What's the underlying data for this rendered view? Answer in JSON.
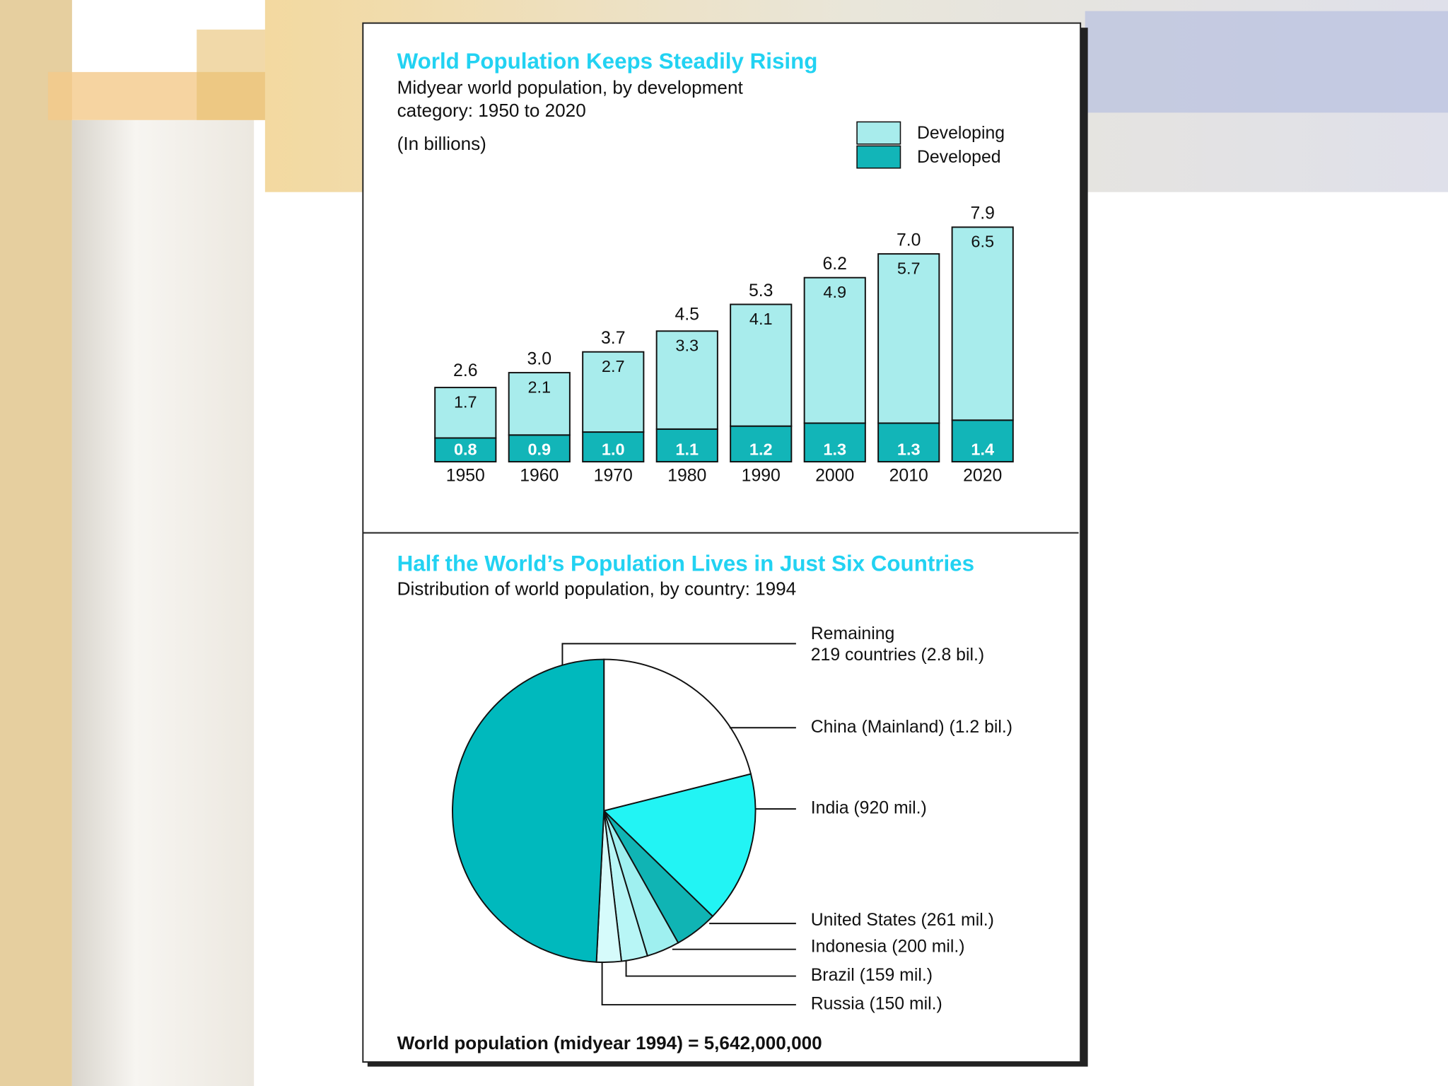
{
  "chart_data": [
    {
      "type": "bar",
      "stacked": true,
      "title": "World Population Keeps Steadily Rising",
      "subtitle": [
        "Midyear world population, by development",
        "category:  1950 to 2020"
      ],
      "unit_note": "(In billions)",
      "categories": [
        "1950",
        "1960",
        "1970",
        "1980",
        "1990",
        "2000",
        "2010",
        "2020"
      ],
      "series": [
        {
          "name": "Developed",
          "color": "#12b5b8",
          "values": [
            0.8,
            0.9,
            1.0,
            1.1,
            1.2,
            1.3,
            1.3,
            1.4
          ],
          "value_labels": [
            "0.8",
            "0.9",
            "1.0",
            "1.1",
            "1.2",
            "1.3",
            "1.3",
            "1.4"
          ]
        },
        {
          "name": "Developing",
          "color": "#a8ecec",
          "values": [
            1.7,
            2.1,
            2.7,
            3.3,
            4.1,
            4.9,
            5.7,
            6.5
          ],
          "value_labels": [
            "1.7",
            "2.1",
            "2.7",
            "3.3",
            "4.1",
            "4.9",
            "5.7",
            "6.5"
          ]
        }
      ],
      "totals": [
        2.6,
        3.0,
        3.7,
        4.5,
        5.3,
        6.2,
        7.0,
        7.9
      ],
      "total_labels": [
        "2.6",
        "3.0",
        "3.7",
        "4.5",
        "5.3",
        "6.2",
        "7.0",
        "7.9"
      ],
      "legend": "top-right"
    },
    {
      "type": "pie",
      "title": "Half the World’s Population Lives in Just Six Countries",
      "subtitle": "Distribution of world population, by country:  1994",
      "categories": [
        [
          "China (Mainland) (1.2 bil.)"
        ],
        [
          "India (920 mil.)"
        ],
        [
          "United States (261 mil.)"
        ],
        [
          "Indonesia (200 mil.)"
        ],
        [
          "Brazil (159 mil.)"
        ],
        [
          "Russia (150 mil.)"
        ],
        [
          "Remaining",
          "219 countries (2.8 bil.)"
        ]
      ],
      "values": [
        1200,
        920,
        261,
        200,
        159,
        150,
        2800
      ],
      "colors": [
        "#ffffff",
        "#22f4f4",
        "#10b4b4",
        "#9ff0f0",
        "#b8f6f6",
        "#d6fbfb",
        "#00b9bd"
      ],
      "note": "World population (midyear 1994) = 5,642,000,000"
    }
  ]
}
